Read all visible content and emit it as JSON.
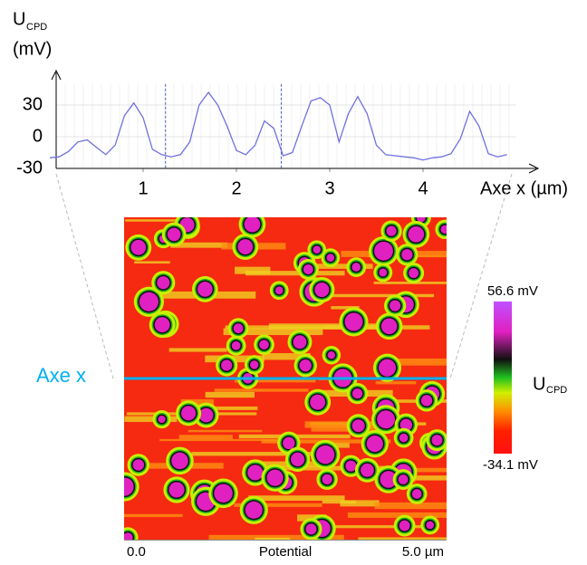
{
  "chart_data": {
    "type": "line",
    "ylabel": "U",
    "ylabel_subscript": "CPD",
    "ylabel_unit": "(mV)",
    "xlabel": "Axe x (µm)",
    "x": [
      0.0,
      0.1,
      0.2,
      0.3,
      0.4,
      0.5,
      0.6,
      0.7,
      0.8,
      0.9,
      1.0,
      1.1,
      1.2,
      1.3,
      1.4,
      1.5,
      1.6,
      1.7,
      1.8,
      1.9,
      2.0,
      2.1,
      2.2,
      2.3,
      2.4,
      2.5,
      2.6,
      2.7,
      2.8,
      2.9,
      3.0,
      3.1,
      3.2,
      3.3,
      3.4,
      3.5,
      3.6,
      3.7,
      3.8,
      3.9,
      4.0,
      4.1,
      4.2,
      4.3,
      4.4,
      4.5,
      4.6,
      4.7,
      4.8,
      4.9
    ],
    "values": [
      -20,
      -19,
      -14,
      -5,
      -3,
      -10,
      -17,
      -8,
      20,
      32,
      18,
      -12,
      -17,
      -19,
      -17,
      -5,
      30,
      42,
      30,
      10,
      -13,
      -17,
      -8,
      15,
      8,
      -18,
      -15,
      10,
      34,
      37,
      30,
      -5,
      22,
      38,
      22,
      -8,
      -17,
      -18,
      -19,
      -20,
      -22,
      -20,
      -19,
      -16,
      -2,
      24,
      10,
      -16,
      -19,
      -17
    ],
    "color": "#7070e0",
    "xlim": [
      0,
      5.2
    ],
    "xticks": [
      1,
      2,
      3,
      4
    ],
    "ylim": [
      -30,
      50
    ],
    "yticks": [
      -30,
      0,
      30
    ],
    "vlines": [
      1.24,
      2.48
    ],
    "grid": true
  },
  "image": {
    "label": "Axe x",
    "colorbar_title": "U",
    "colorbar_title_subscript": "CPD",
    "colorbar_max": "56.6 mV",
    "colorbar_min": "-34.1 mV",
    "x_start": "0.0",
    "caption": "Potential",
    "x_end": "5.0 µm"
  }
}
